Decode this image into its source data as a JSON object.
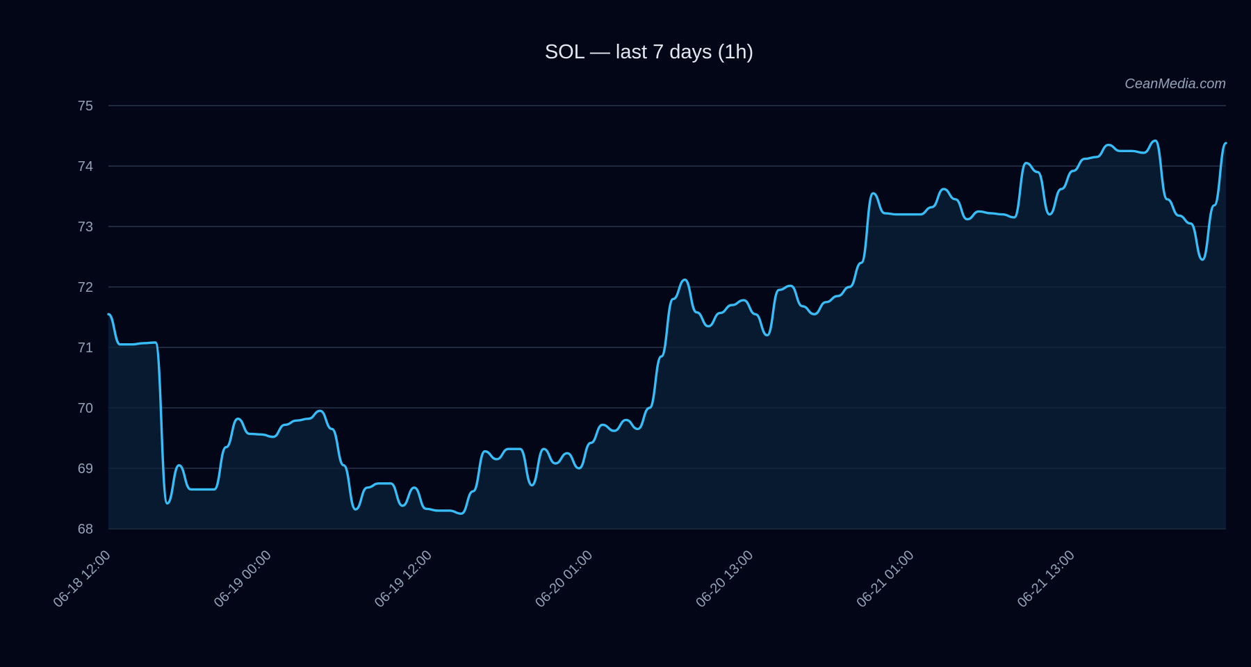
{
  "chart_data": {
    "type": "line",
    "title": "SOL — last 7 days (1h)",
    "watermark": "CeanMedia.com",
    "xlabel": "",
    "ylabel": "",
    "ylim": [
      68,
      75
    ],
    "yticks": [
      68,
      69,
      70,
      71,
      72,
      73,
      74,
      75
    ],
    "xticks": [
      "06-18 12:00",
      "06-19 00:00",
      "06-19 12:00",
      "06-20 01:00",
      "06-20 13:00",
      "06-21 01:00",
      "06-21 13:00"
    ],
    "grid": true,
    "series": [
      {
        "color": "#38bdf8",
        "values": [
          71.55,
          71.05,
          71.05,
          71.07,
          71.08,
          68.42,
          69.05,
          68.65,
          68.65,
          68.65,
          69.35,
          69.82,
          69.57,
          69.56,
          69.52,
          69.72,
          69.79,
          69.82,
          69.95,
          69.65,
          69.05,
          68.32,
          68.68,
          68.75,
          68.75,
          68.38,
          68.68,
          68.33,
          68.3,
          68.3,
          68.25,
          68.62,
          69.28,
          69.15,
          69.32,
          69.32,
          68.72,
          69.32,
          69.08,
          69.25,
          69.0,
          69.42,
          69.72,
          69.62,
          69.8,
          69.65,
          70.0,
          70.85,
          71.8,
          72.12,
          71.58,
          71.35,
          71.57,
          71.7,
          71.78,
          71.55,
          71.2,
          71.95,
          72.02,
          71.68,
          71.55,
          71.75,
          71.85,
          72.0,
          72.4,
          73.55,
          73.22,
          73.2,
          73.2,
          73.2,
          73.32,
          73.62,
          73.45,
          73.12,
          73.25,
          73.22,
          73.2,
          73.15,
          74.05,
          73.9,
          73.2,
          73.62,
          73.92,
          74.12,
          74.15,
          74.35,
          74.25,
          74.25,
          74.22,
          74.42,
          73.45,
          73.18,
          73.05,
          72.45,
          73.35,
          74.38
        ]
      }
    ]
  }
}
